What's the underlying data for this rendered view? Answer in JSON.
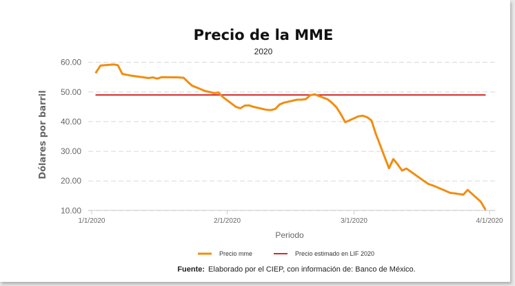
{
  "chart_data": {
    "type": "line",
    "title": "Precio de la MME",
    "subtitle": "2020",
    "ylabel": "Dólares por barril",
    "xlabel": "Periodo",
    "ylim": [
      8,
      62
    ],
    "yticks": [
      "10.00",
      "20.00",
      "30.00",
      "40.00",
      "50.00",
      "60.00"
    ],
    "xlim": [
      "2020-01-01",
      "2020-04-01"
    ],
    "xticks": [
      "1/1/2020",
      "2/1/2020",
      "3/1/2020",
      "4/1/2020"
    ],
    "grid": true,
    "legend_position": "bottom",
    "series": [
      {
        "name": "Precio mme",
        "color": "#f28c0f",
        "points": [
          [
            "2020-01-02",
            56.6
          ],
          [
            "2020-01-03",
            58.9
          ],
          [
            "2020-01-06",
            59.3
          ],
          [
            "2020-01-07",
            59.0
          ],
          [
            "2020-01-08",
            56.1
          ],
          [
            "2020-01-09",
            55.8
          ],
          [
            "2020-01-10",
            55.5
          ],
          [
            "2020-01-13",
            54.9
          ],
          [
            "2020-01-14",
            54.7
          ],
          [
            "2020-01-15",
            54.9
          ],
          [
            "2020-01-16",
            54.5
          ],
          [
            "2020-01-17",
            55.0
          ],
          [
            "2020-01-21",
            54.9
          ],
          [
            "2020-01-22",
            54.8
          ],
          [
            "2020-01-23",
            53.4
          ],
          [
            "2020-01-24",
            52.1
          ],
          [
            "2020-01-27",
            50.3
          ],
          [
            "2020-01-28",
            50.0
          ],
          [
            "2020-01-29",
            49.6
          ],
          [
            "2020-01-30",
            49.8
          ],
          [
            "2020-01-31",
            48.3
          ],
          [
            "2020-02-03",
            45.0
          ],
          [
            "2020-02-04",
            44.5
          ],
          [
            "2020-02-05",
            45.4
          ],
          [
            "2020-02-06",
            45.5
          ],
          [
            "2020-02-07",
            45.0
          ],
          [
            "2020-02-10",
            44.0
          ],
          [
            "2020-02-11",
            43.9
          ],
          [
            "2020-02-12",
            44.3
          ],
          [
            "2020-02-13",
            45.8
          ],
          [
            "2020-02-14",
            46.4
          ],
          [
            "2020-02-17",
            47.4
          ],
          [
            "2020-02-18",
            47.4
          ],
          [
            "2020-02-19",
            47.6
          ],
          [
            "2020-02-20",
            48.9
          ],
          [
            "2020-02-21",
            49.2
          ],
          [
            "2020-02-24",
            47.5
          ],
          [
            "2020-02-25",
            46.3
          ],
          [
            "2020-02-26",
            44.8
          ],
          [
            "2020-02-27",
            42.5
          ],
          [
            "2020-02-28",
            39.8
          ],
          [
            "2020-03-02",
            41.8
          ],
          [
            "2020-03-03",
            42.0
          ],
          [
            "2020-03-04",
            41.5
          ],
          [
            "2020-03-05",
            40.4
          ],
          [
            "2020-03-06",
            35.9
          ],
          [
            "2020-03-09",
            24.3
          ],
          [
            "2020-03-10",
            27.4
          ],
          [
            "2020-03-11",
            25.6
          ],
          [
            "2020-03-12",
            23.5
          ],
          [
            "2020-03-13",
            24.2
          ],
          [
            "2020-03-17",
            20.0
          ],
          [
            "2020-03-18",
            19.0
          ],
          [
            "2020-03-19",
            18.5
          ],
          [
            "2020-03-20",
            17.9
          ],
          [
            "2020-03-23",
            16.0
          ],
          [
            "2020-03-24",
            15.8
          ],
          [
            "2020-03-25",
            15.6
          ],
          [
            "2020-03-26",
            15.4
          ],
          [
            "2020-03-27",
            17.0
          ],
          [
            "2020-03-30",
            13.0
          ],
          [
            "2020-03-31",
            10.5
          ]
        ]
      },
      {
        "name": "Precio estimado en LIF 2020",
        "color": "#d62828",
        "points": [
          [
            "2020-01-02",
            49.0
          ],
          [
            "2020-03-31",
            49.0
          ]
        ]
      }
    ]
  },
  "source": {
    "label": "Fuente:",
    "text": "Elaborado por el CIEP, con información de: Banco de México."
  }
}
